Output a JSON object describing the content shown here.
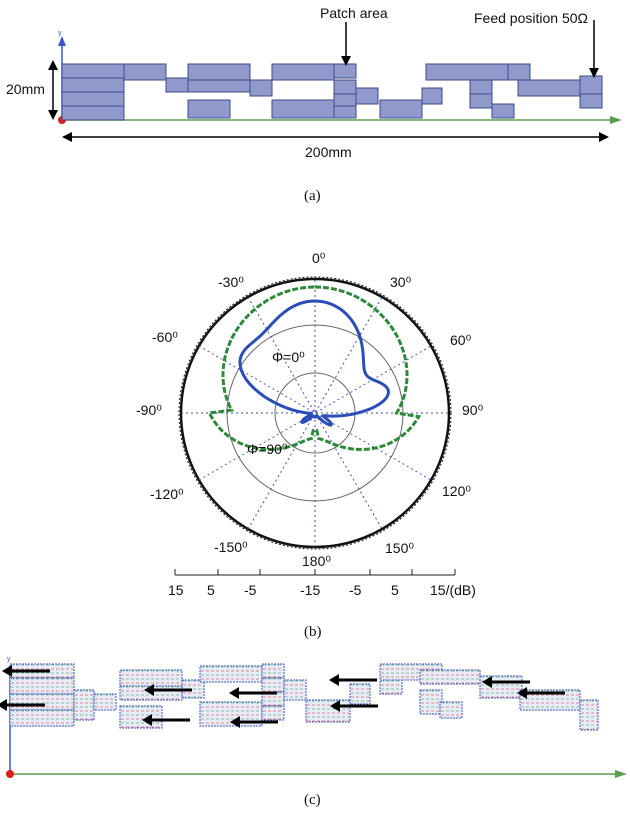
{
  "panel_a": {
    "patch_area_label": "Patch area",
    "feed_label": "Feed position 50Ω",
    "height_label": "20mm",
    "length_label": "200mm",
    "axis_label": "y",
    "caption": "(a)"
  },
  "panel_b": {
    "caption": "(b)",
    "angle_labels": [
      "0⁰",
      "30⁰",
      "60⁰",
      "90⁰",
      "120⁰",
      "150⁰",
      "180⁰",
      "-150⁰",
      "-120⁰",
      "-90⁰",
      "-60⁰",
      "-30⁰"
    ],
    "phi0_label": "Φ=0⁰",
    "phi90_label": "Φ=90⁰",
    "scale_ticks": [
      "15",
      "5",
      "-5",
      "-15",
      "-5",
      "5",
      "15/(dB)"
    ]
  },
  "panel_c": {
    "caption": "(c)",
    "axis_label": "y"
  },
  "colors": {
    "patch_fill": "#8f99cc",
    "patch_stroke": "#3f4a8a",
    "ground_line": "#5aa04a",
    "phi0_curve": "#2a4db8",
    "phi90_curve": "#2c8a3a",
    "grid_dotted": "#3c4fb8",
    "arrow": "#000000"
  }
}
